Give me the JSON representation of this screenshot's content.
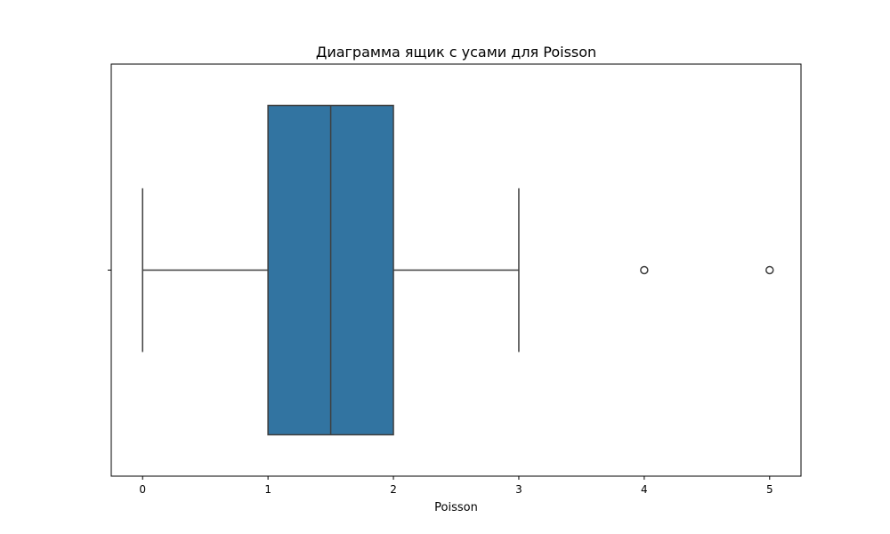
{
  "chart_data": {
    "type": "box",
    "title": "Диаграмма ящик с усами для Poisson",
    "xlabel": "Poisson",
    "ylabel": "",
    "xlim": [
      -0.25,
      5.25
    ],
    "xticks": [
      0,
      1,
      2,
      3,
      4,
      5
    ],
    "grid": false,
    "box": {
      "whisker_low": 0,
      "q1": 1,
      "median": 1.5,
      "q3": 2,
      "whisker_high": 3,
      "outliers": [
        4,
        5
      ]
    },
    "colors": {
      "box_fill": "#3274a1",
      "line": "#3f3f3f",
      "axis": "#000000"
    }
  }
}
